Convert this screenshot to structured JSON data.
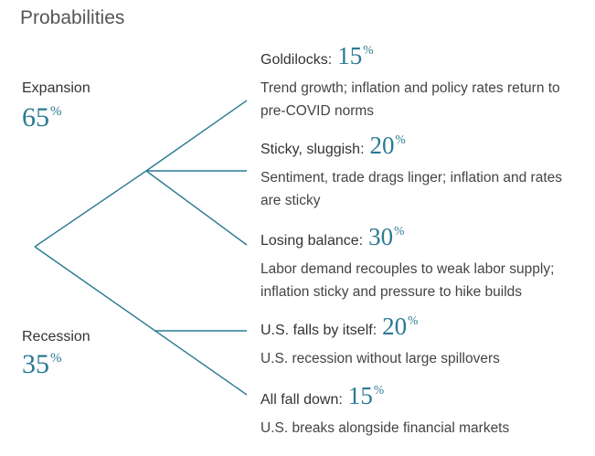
{
  "title": "Probabilities",
  "unit": "%",
  "branches": [
    {
      "label": "Expansion",
      "probability": 65
    },
    {
      "label": "Recession",
      "probability": 35
    }
  ],
  "scenarios": [
    {
      "name": "Goldilocks:",
      "probability": 15,
      "description": "Trend growth; inflation and policy rates return to pre-COVID norms"
    },
    {
      "name": "Sticky, sluggish:",
      "probability": 20,
      "description": "Sentiment, trade drags linger; inflation and rates are sticky"
    },
    {
      "name": "Losing balance:",
      "probability": 30,
      "description": "Labor demand recouples to weak labor supply; inflation sticky and pressure to hike builds"
    },
    {
      "name": "U.S. falls by itself:",
      "probability": 20,
      "description": "U.S. recession without large spillovers"
    },
    {
      "name": "All fall down:",
      "probability": 15,
      "description": "U.S. breaks alongside financial markets"
    }
  ]
}
